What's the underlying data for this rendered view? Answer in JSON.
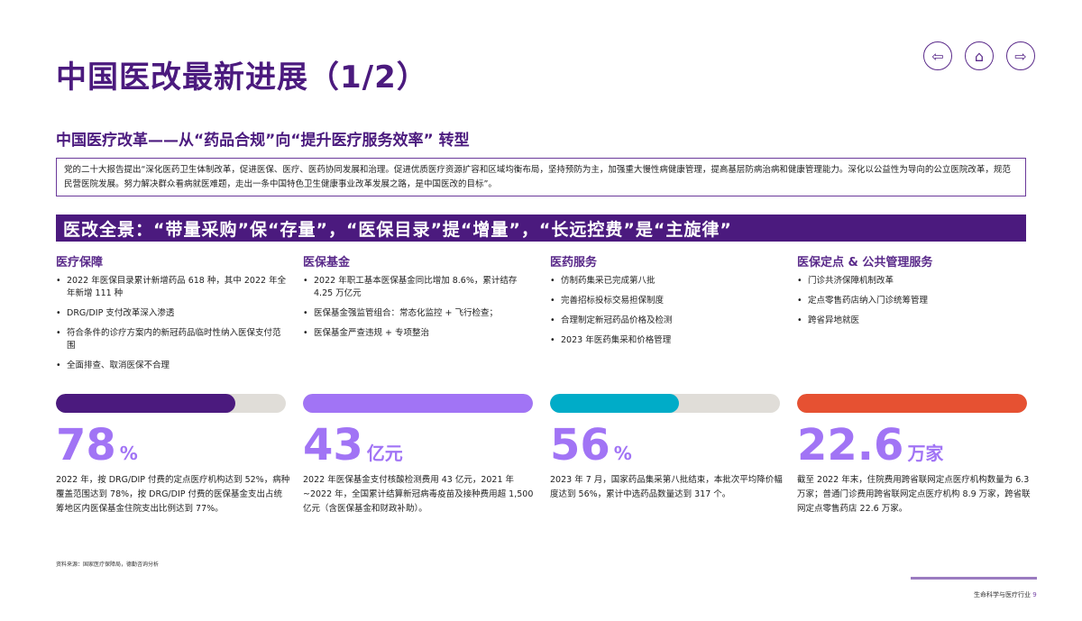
{
  "title": "中国医改最新进展（1/2）",
  "nav": {
    "back_icon": "arrow-left-icon",
    "home_icon": "home-icon",
    "next_icon": "arrow-right-icon"
  },
  "subtitle": "中国医疗改革——从“药品合规”向“提升医疗服务效率” 转型",
  "quote": "党的二十大报告提出“深化医药卫生体制改革，促进医保、医疗、医药协同发展和治理。促进优质医疗资源扩容和区域均衡布局，坚持预防为主，加强重大慢性病健康管理，提高基层防病治病和健康管理能力。深化以公益性为导向的公立医院改革，规范民营医院发展。努力解决群众看病就医难题，走出一条中国特色卫生健康事业改革发展之路，是中国医改的目标”。",
  "banner": "医改全景：“带量采购”保“存量”，“医保目录”提“增量”，“长远控费”是“主旋律”",
  "columns": [
    {
      "heading": "医疗保障",
      "items": [
        "2022 年医保目录累计新增药品 618 种，其中 2022 年全年新增 111 种",
        "DRG/DIP 支付改革深入渗透",
        "符合条件的诊疗方案内的新冠药品临时性纳入医保支付范围",
        "全面排查、取消医保不合理"
      ],
      "progress": 78,
      "color": "#4b1a7e",
      "value": "78",
      "unit": "%",
      "desc": "2022 年，按 DRG/DIP 付费的定点医疗机构达到 52%，病种覆盖范围达到 78%，按 DRG/DIP 付费的医保基金支出占统筹地区内医保基金住院支出比例达到 77%。"
    },
    {
      "heading": "医保基金",
      "items": [
        "2022 年职工基本医保基金同比增加 8.6%，累计结存 4.25 万亿元",
        "医保基金强监管组合：常态化监控 + 飞行检查；",
        "医保基金严查违规 + 专项整治"
      ],
      "progress": 100,
      "color": "#a174f5",
      "value": "43",
      "unit": "亿元",
      "desc": "2022 年医保基金支付核酸检测费用 43 亿元，2021 年~2022 年，全国累计结算新冠病毒疫苗及接种费用超 1,500 亿元（含医保基金和财政补助）。"
    },
    {
      "heading": "医药服务",
      "items": [
        "仿制药集采已完成第八批",
        "完善招标投标交易担保制度",
        "合理制定新冠药品价格及检测",
        "2023 年医药集采和价格管理"
      ],
      "progress": 56,
      "color": "#00acc8",
      "value": "56",
      "unit": "%",
      "desc": "2023 年 7 月，国家药品集采第八批结束，本批次平均降价幅度达到 56%，累计中选药品数量达到 317 个。"
    },
    {
      "heading": "医保定点 & 公共管理服务",
      "items": [
        "门诊共济保障机制改革",
        "定点零售药店纳入门诊统筹管理",
        "跨省异地就医"
      ],
      "progress": 100,
      "color": "#e65132",
      "value": "22.6",
      "unit": "万家",
      "desc": "截至 2022 年末，住院费用跨省联网定点医疗机构数量为 6.3 万家；普通门诊费用跨省联网定点医疗机构 8.9 万家，跨省联网定点零售药店 22.6 万家。"
    }
  ],
  "footer": {
    "source": "资料来源：国家医疗保障局，德勤咨询分析",
    "section": "生命科学与医疗行业",
    "page": "9"
  }
}
